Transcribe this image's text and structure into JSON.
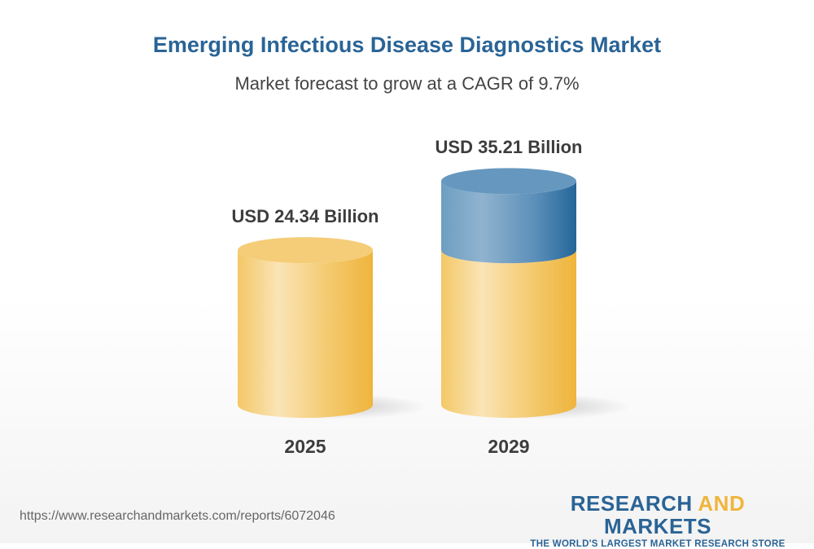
{
  "chart_data": {
    "type": "bar",
    "title": "Emerging Infectious Disease Diagnostics Market",
    "subtitle": "Market forecast to grow at a CAGR of 9.7%",
    "categories": [
      "2025",
      "2029"
    ],
    "values": [
      24.34,
      35.21
    ],
    "data_labels": [
      "USD 24.34 Billion",
      "USD 35.21 Billion"
    ],
    "unit": "USD Billion",
    "style": "3d-cylinder",
    "colors": {
      "base": "#f0b53c",
      "growth": "#2a6496"
    }
  },
  "footer": {
    "url": "https://www.researchandmarkets.com/reports/6072046",
    "logo_part1": "RESEARCH ",
    "logo_part2": "AND",
    "logo_part3": " MARKETS",
    "logo_tagline": "THE WORLD'S LARGEST MARKET RESEARCH STORE"
  }
}
